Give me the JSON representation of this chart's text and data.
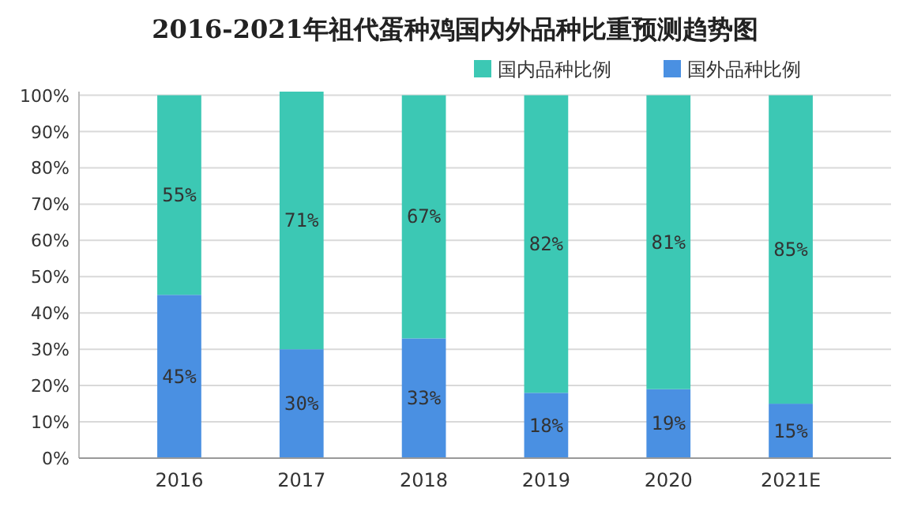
{
  "chart_data": {
    "type": "bar",
    "title": "2016-2021年祖代蛋种鸡国内外品种比重预测趋势图",
    "categories": [
      "2016",
      "2017",
      "2018",
      "2019",
      "2020",
      "2021E"
    ],
    "stacked": true,
    "series": [
      {
        "name": "国外品种比例",
        "color": "#4a90e2",
        "values": [
          45,
          30,
          33,
          18,
          19,
          15
        ],
        "value_labels": [
          "45%",
          "30%",
          "33%",
          "18%",
          "19%",
          "15%"
        ]
      },
      {
        "name": "国内品种比例",
        "color": "#3cc8b4",
        "values": [
          55,
          71,
          67,
          82,
          81,
          85
        ],
        "value_labels": [
          "55%",
          "71%",
          "67%",
          "82%",
          "81%",
          "85%"
        ]
      }
    ],
    "ylim": [
      0,
      101
    ],
    "yticks": [
      {
        "value": 0,
        "label": "0%"
      },
      {
        "value": 10,
        "label": "10%"
      },
      {
        "value": 20,
        "label": "20%"
      },
      {
        "value": 30,
        "label": "30%"
      },
      {
        "value": 40,
        "label": "40%"
      },
      {
        "value": 50,
        "label": "50%"
      },
      {
        "value": 60,
        "label": "60%"
      },
      {
        "value": 70,
        "label": "70%"
      },
      {
        "value": 80,
        "label": "80%"
      },
      {
        "value": 90,
        "label": "90%"
      },
      {
        "value": 100,
        "label": "100%"
      }
    ],
    "grid": "y",
    "legend": "top right"
  }
}
